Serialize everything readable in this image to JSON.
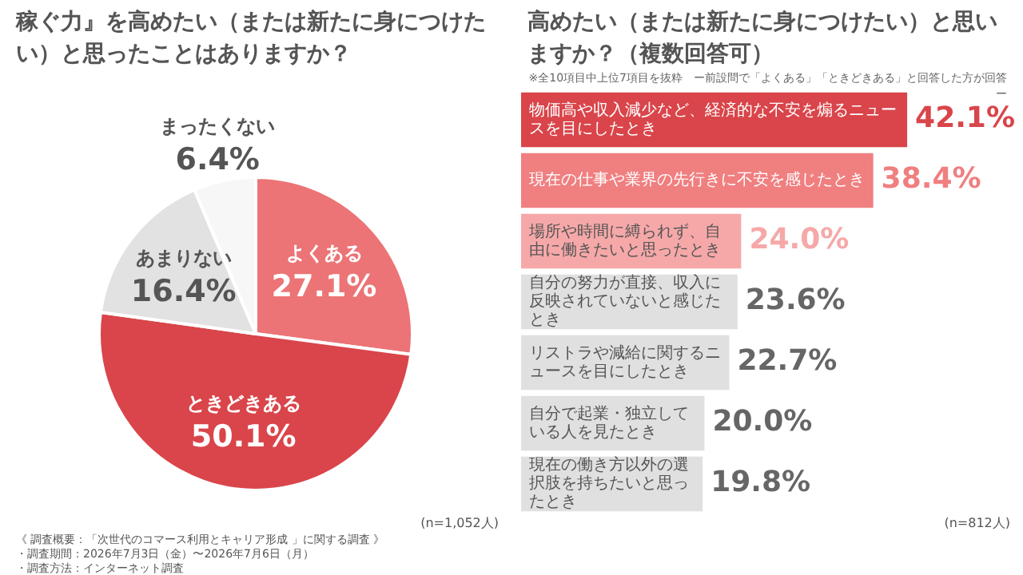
{
  "chart_data": [
    {
      "type": "pie",
      "title": "稼ぐ力』を高めたい（または新たに身につけたい）と思ったことはありますか？",
      "categories": [
        "よくある",
        "ときどきある",
        "あまりない",
        "まったくない"
      ],
      "values": [
        27.1,
        50.1,
        16.4,
        6.4
      ],
      "colors": [
        "#ec7476",
        "#d9454a",
        "#e2e2e2",
        "#f7f7f7"
      ],
      "value_labels": [
        "27.1%",
        "50.1%",
        "16.4%",
        "6.4%"
      ],
      "legend": false,
      "annotations": [
        "(n=1,052人)",
        "《 調査概要：「次世代のコマース利用とキャリア形成 」に関する調査 》",
        "・調査期間：2026年7月3日（金）〜2026年7月6日（月）",
        "・調査方法：インターネット調査"
      ]
    },
    {
      "type": "bar",
      "orientation": "horizontal",
      "title": "高めたい（または新たに身につけたい）と思いますか？（複数回答可）",
      "subtitle": "※全10項目中上位7項目を抜粋　ー前設問で「よくある」「ときどきある」と回答した方が回答ー",
      "categories": [
        "物価高や収入減少など、経済的な不安を煽るニュースを目にしたとき",
        "現在の仕事や業界の先行きに不安を感じたとき",
        "場所や時間に縛られず、自由に働きたいと思ったとき",
        "自分の努力が直接、収入に反映されていないと感じたとき",
        "リストラや減給に関するニュースを目にしたとき",
        "自分で起業・独立している人を見たとき",
        "現在の働き方以外の選択肢を持ちたいと思ったとき"
      ],
      "values": [
        42.1,
        38.4,
        24.0,
        23.6,
        22.7,
        20.0,
        19.8
      ],
      "colors": [
        "#d9454a",
        "#f07f80",
        "#f6a8a8",
        "#e0e0e0",
        "#e0e0e0",
        "#e0e0e0",
        "#e0e0e0"
      ],
      "value_labels": [
        "42.1%",
        "38.4%",
        "24.0%",
        "23.6%",
        "22.7%",
        "20.0%",
        "19.8%"
      ],
      "legend": false,
      "annotations": [
        "(n=812人)"
      ]
    }
  ]
}
